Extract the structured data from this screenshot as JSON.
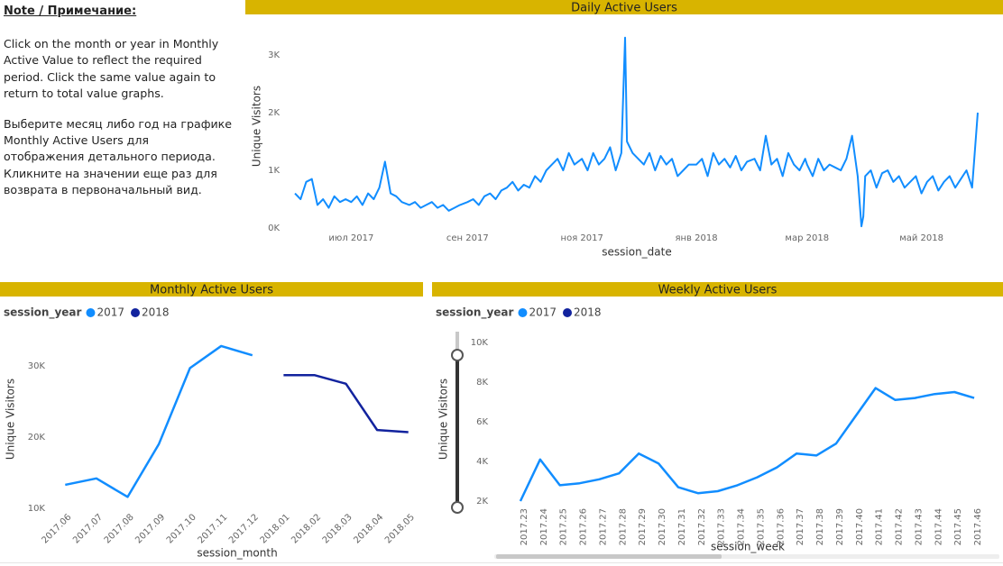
{
  "note": {
    "title": "Note / Примечание:",
    "paragraphs": [
      [
        "Click on the month or year in Monthly",
        "Active Value to reflect the required",
        "period. Click the same value again to",
        "return to total value graphs."
      ],
      [
        "Выберите месяц либо год на графике",
        "Monthly Active Users для",
        "отображения детального периода.",
        "Кликните на значении еще раз для",
        "возврата в первоначальный вид."
      ]
    ]
  },
  "chart_data": [
    {
      "type": "line",
      "title": "Daily Active Users",
      "x_label": "session_date",
      "y_label": "Unique Visitors",
      "xlim": [
        "2017-06-01",
        "2018-05-31"
      ],
      "xticks": [
        {
          "value": "2017-07-01",
          "label": "июл 2017"
        },
        {
          "value": "2017-09-01",
          "label": "сен 2017"
        },
        {
          "value": "2017-11-01",
          "label": "ноя 2017"
        },
        {
          "value": "2018-01-01",
          "label": "янв 2018"
        },
        {
          "value": "2018-03-01",
          "label": "мар 2018"
        },
        {
          "value": "2018-05-01",
          "label": "май 2018"
        }
      ],
      "ylim": [
        0,
        3500
      ],
      "yticks": [
        {
          "value": 0,
          "label": "0K"
        },
        {
          "value": 1000,
          "label": "1K"
        },
        {
          "value": 2000,
          "label": "2K"
        },
        {
          "value": 3000,
          "label": "3K"
        }
      ],
      "grid": false,
      "x": [
        "2017-06-01",
        "2017-06-04",
        "2017-06-07",
        "2017-06-10",
        "2017-06-13",
        "2017-06-16",
        "2017-06-19",
        "2017-06-22",
        "2017-06-25",
        "2017-06-28",
        "2017-07-01",
        "2017-07-04",
        "2017-07-07",
        "2017-07-10",
        "2017-07-13",
        "2017-07-16",
        "2017-07-19",
        "2017-07-22",
        "2017-07-25",
        "2017-07-28",
        "2017-08-01",
        "2017-08-04",
        "2017-08-07",
        "2017-08-10",
        "2017-08-13",
        "2017-08-16",
        "2017-08-19",
        "2017-08-22",
        "2017-08-25",
        "2017-08-28",
        "2017-09-01",
        "2017-09-04",
        "2017-09-07",
        "2017-09-10",
        "2017-09-13",
        "2017-09-16",
        "2017-09-19",
        "2017-09-22",
        "2017-09-25",
        "2017-09-28",
        "2017-10-01",
        "2017-10-04",
        "2017-10-07",
        "2017-10-10",
        "2017-10-13",
        "2017-10-16",
        "2017-10-19",
        "2017-10-22",
        "2017-10-25",
        "2017-10-28",
        "2017-11-01",
        "2017-11-04",
        "2017-11-07",
        "2017-11-10",
        "2017-11-13",
        "2017-11-16",
        "2017-11-19",
        "2017-11-22",
        "2017-11-24",
        "2017-11-25",
        "2017-11-28",
        "2017-12-01",
        "2017-12-04",
        "2017-12-07",
        "2017-12-10",
        "2017-12-13",
        "2017-12-16",
        "2017-12-19",
        "2017-12-22",
        "2017-12-25",
        "2017-12-28",
        "2018-01-01",
        "2018-01-04",
        "2018-01-07",
        "2018-01-10",
        "2018-01-13",
        "2018-01-16",
        "2018-01-19",
        "2018-01-22",
        "2018-01-25",
        "2018-01-28",
        "2018-02-01",
        "2018-02-04",
        "2018-02-07",
        "2018-02-10",
        "2018-02-13",
        "2018-02-16",
        "2018-02-19",
        "2018-02-22",
        "2018-02-25",
        "2018-02-28",
        "2018-03-01",
        "2018-03-04",
        "2018-03-07",
        "2018-03-10",
        "2018-03-13",
        "2018-03-16",
        "2018-03-19",
        "2018-03-22",
        "2018-03-25",
        "2018-03-28",
        "2018-03-30",
        "2018-03-31",
        "2018-04-01",
        "2018-04-04",
        "2018-04-07",
        "2018-04-10",
        "2018-04-13",
        "2018-04-16",
        "2018-04-19",
        "2018-04-22",
        "2018-04-25",
        "2018-04-28",
        "2018-05-01",
        "2018-05-04",
        "2018-05-07",
        "2018-05-10",
        "2018-05-13",
        "2018-05-16",
        "2018-05-19",
        "2018-05-22",
        "2018-05-25",
        "2018-05-28",
        "2018-05-31"
      ],
      "series": [
        {
          "name": "Unique Visitors",
          "color": "#118dff",
          "values": [
            600,
            500,
            800,
            850,
            400,
            500,
            350,
            550,
            450,
            500,
            450,
            550,
            400,
            600,
            500,
            700,
            1150,
            600,
            550,
            450,
            400,
            450,
            350,
            400,
            450,
            350,
            400,
            300,
            350,
            400,
            450,
            500,
            400,
            550,
            600,
            500,
            650,
            700,
            800,
            650,
            750,
            700,
            900,
            800,
            1000,
            1100,
            1200,
            1000,
            1300,
            1100,
            1200,
            1000,
            1300,
            1100,
            1200,
            1400,
            1000,
            1300,
            3300,
            1500,
            1300,
            1200,
            1100,
            1300,
            1000,
            1250,
            1100,
            1200,
            900,
            1000,
            1100,
            1100,
            1200,
            900,
            1300,
            1100,
            1200,
            1050,
            1250,
            1000,
            1150,
            1200,
            1000,
            1600,
            1100,
            1200,
            900,
            1300,
            1100,
            1000,
            1200,
            1100,
            900,
            1200,
            1000,
            1100,
            1050,
            1000,
            1200,
            1600,
            900,
            30,
            200,
            900,
            1000,
            700,
            950,
            1000,
            800,
            900,
            700,
            800,
            900,
            600,
            800,
            900,
            650,
            800,
            900,
            700,
            850,
            1000,
            700,
            2000
          ]
        }
      ]
    },
    {
      "type": "line",
      "title": "Monthly Active Users",
      "x_label": "session_month",
      "y_label": "Unique Visitors",
      "legend_title": "session_year",
      "categories": [
        "2017.06",
        "2017.07",
        "2017.08",
        "2017.09",
        "2017.10",
        "2017.11",
        "2017.12",
        "2018.01",
        "2018.02",
        "2018.03",
        "2018.04",
        "2018.05"
      ],
      "ylim": [
        10000,
        34500
      ],
      "yticks": [
        {
          "value": 10000,
          "label": "10K"
        },
        {
          "value": 20000,
          "label": "20K"
        },
        {
          "value": 30000,
          "label": "30K"
        }
      ],
      "grid": false,
      "series": [
        {
          "name": "2017",
          "color": "#118dff",
          "values": [
            13300,
            14200,
            11600,
            19000,
            29700,
            32800,
            31500,
            null,
            null,
            null,
            null,
            null
          ]
        },
        {
          "name": "2018",
          "color": "#12239e",
          "values": [
            null,
            null,
            null,
            null,
            null,
            null,
            null,
            28700,
            28700,
            27500,
            21000,
            20700
          ]
        }
      ]
    },
    {
      "type": "line",
      "title": "Weekly Active Users",
      "x_label": "session_week",
      "y_label": "Unique Visitors",
      "legend_title": "session_year",
      "categories": [
        "2017.23",
        "2017.24",
        "2017.25",
        "2017.26",
        "2017.27",
        "2017.28",
        "2017.29",
        "2017.30",
        "2017.31",
        "2017.32",
        "2017.33",
        "2017.34",
        "2017.35",
        "2017.36",
        "2017.37",
        "2017.38",
        "2017.39",
        "2017.40",
        "2017.41",
        "2017.42",
        "2017.43",
        "2017.44",
        "2017.45",
        "2017.46"
      ],
      "ylim": [
        2000,
        10000
      ],
      "yticks": [
        {
          "value": 2000,
          "label": "2K"
        },
        {
          "value": 4000,
          "label": "4K"
        },
        {
          "value": 6000,
          "label": "6K"
        },
        {
          "value": 8000,
          "label": "8K"
        },
        {
          "value": 10000,
          "label": "10K"
        }
      ],
      "grid": false,
      "series": [
        {
          "name": "2017",
          "color": "#118dff",
          "values": [
            2000,
            4100,
            2800,
            2900,
            3100,
            3400,
            4400,
            3900,
            2700,
            2400,
            2500,
            2800,
            3200,
            3700,
            4400,
            4300,
            4900,
            6300,
            7700,
            7100,
            7200,
            7400,
            7500,
            7200
          ]
        },
        {
          "name": "2018",
          "color": "#12239e",
          "values": [
            null,
            null,
            null,
            null,
            null,
            null,
            null,
            null,
            null,
            null,
            null,
            null,
            null,
            null,
            null,
            null,
            null,
            null,
            null,
            null,
            null,
            null,
            null,
            null
          ]
        }
      ]
    }
  ]
}
